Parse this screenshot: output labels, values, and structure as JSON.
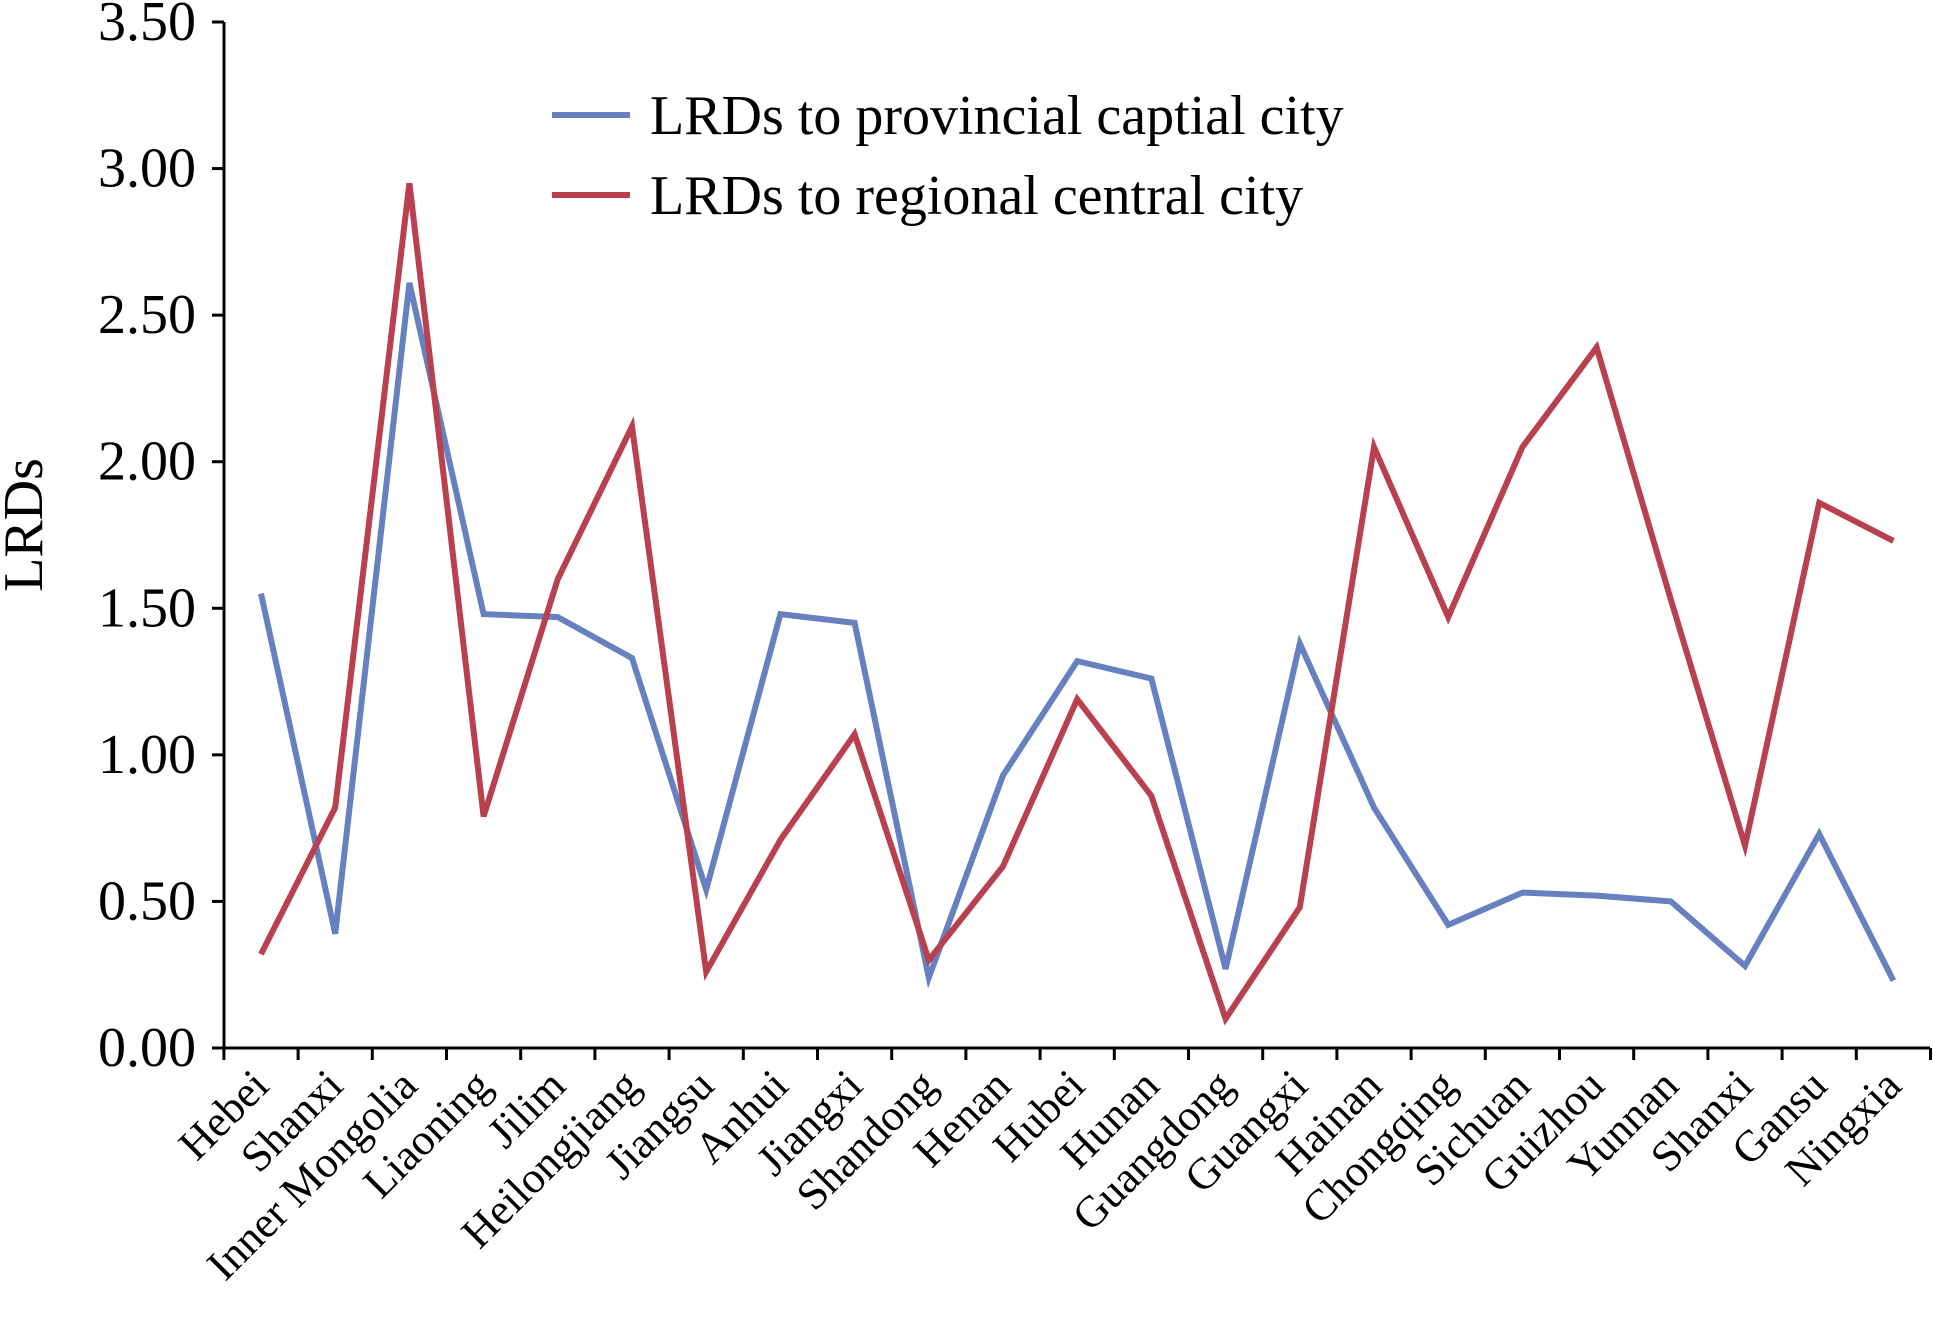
{
  "chart_data": {
    "type": "line",
    "title": "",
    "xlabel": "",
    "ylabel": "LRDs",
    "ylim": [
      0,
      3.5
    ],
    "yticks": [
      "0.00",
      "0.50",
      "1.00",
      "1.50",
      "2.00",
      "2.50",
      "3.00",
      "3.50"
    ],
    "grid": false,
    "legend_position": "top-center",
    "categories": [
      "Hebei",
      "Shanxi",
      "Inner Mongolia",
      "Liaoning",
      "Jilim",
      "Heilongjiang",
      "Jiangsu",
      "Anhui",
      "Jiangxi",
      "Shandong",
      "Henan",
      "Hubei",
      "Hunan",
      "Guangdong",
      "Guangxi",
      "Hainan",
      "Chongqing",
      "Sichuan",
      "Guizhou",
      "Yunnan",
      "Shanxi",
      "Gansu",
      "Ningxia"
    ],
    "series": [
      {
        "name": "LRDs to provincial captial city",
        "color": "#6680C0",
        "values": [
          1.55,
          0.39,
          2.61,
          1.48,
          1.47,
          1.33,
          0.54,
          1.48,
          1.45,
          0.24,
          0.93,
          1.32,
          1.26,
          0.27,
          1.38,
          0.82,
          0.42,
          0.53,
          0.52,
          0.5,
          0.28,
          0.73,
          0.23
        ]
      },
      {
        "name": "LRDs to regional central city",
        "color": "#B8404F",
        "values": [
          0.32,
          0.82,
          2.95,
          0.79,
          1.6,
          2.12,
          0.26,
          0.71,
          1.07,
          0.3,
          0.62,
          1.19,
          0.86,
          0.1,
          0.48,
          2.05,
          1.47,
          2.05,
          2.39,
          1.53,
          0.69,
          1.86,
          1.73
        ]
      }
    ]
  }
}
